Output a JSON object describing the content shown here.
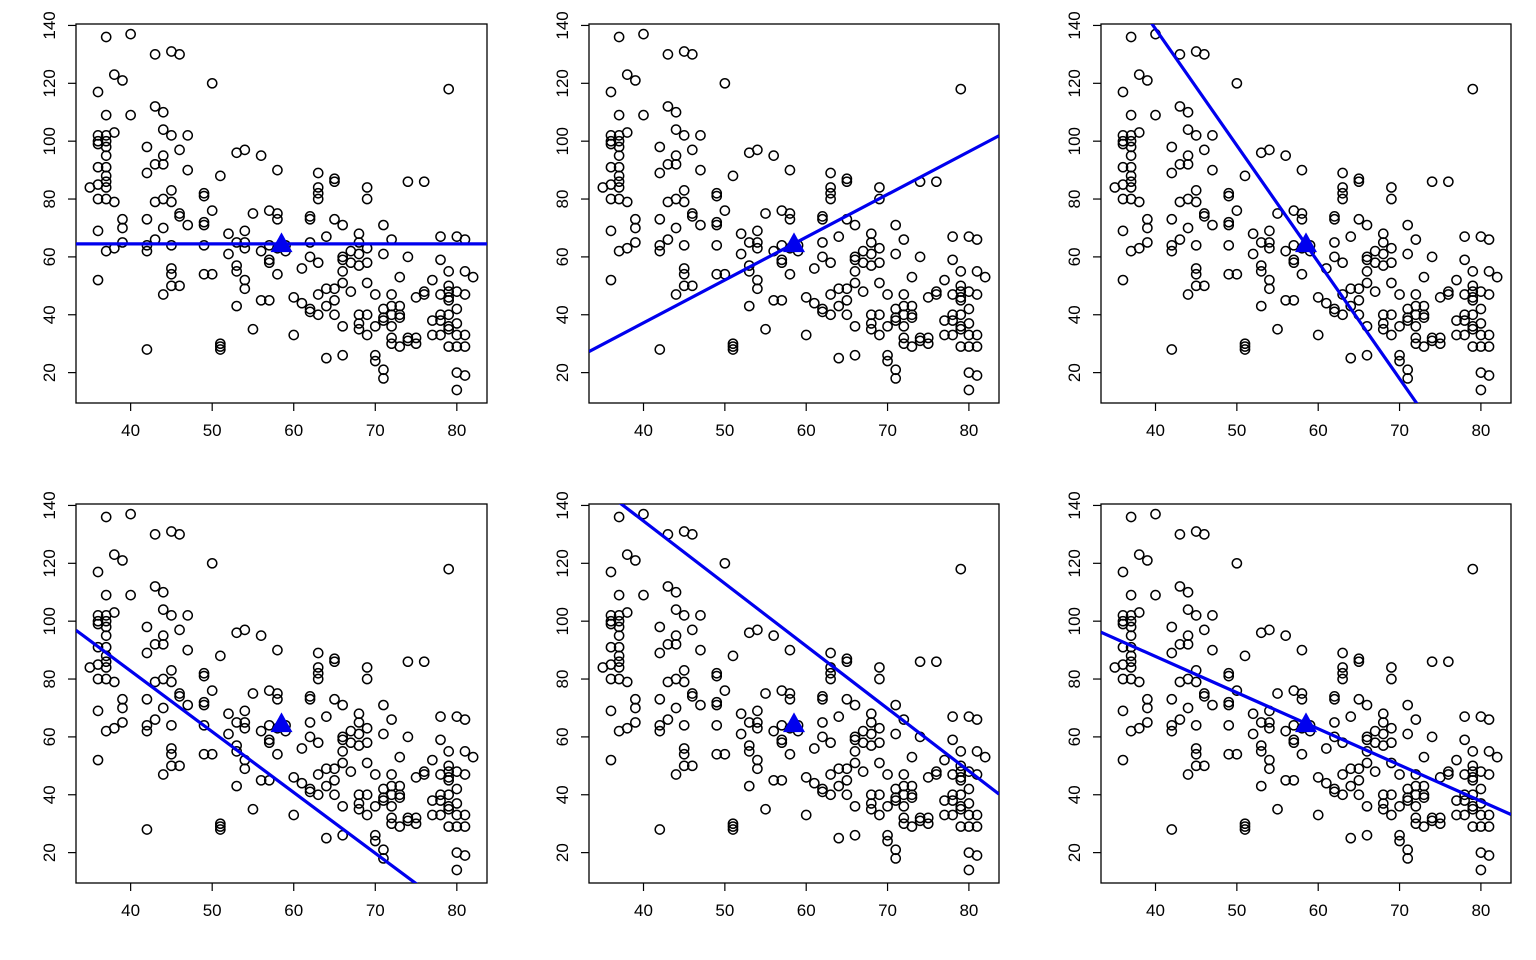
{
  "chart_data": {
    "type": "scatter",
    "layout_grid": "2x3",
    "colors": {
      "points": "#000000",
      "line": "#0000ee",
      "marker": "#0000ee"
    },
    "xlim": [
      33.3,
      83.7
    ],
    "ylim": [
      9.5,
      140.5
    ],
    "x_ticks": [
      40,
      50,
      60,
      70,
      80
    ],
    "y_ticks": [
      20,
      40,
      60,
      80,
      100,
      120,
      140
    ],
    "x_tick_labels": [
      "40",
      "50",
      "60",
      "70",
      "80"
    ],
    "y_tick_labels": [
      "20",
      "40",
      "60",
      "80",
      "100",
      "120",
      "140"
    ],
    "mean_point": {
      "x": 58.5,
      "y": 64.5,
      "shape": "triangle"
    },
    "points": [
      [
        36,
        117
      ],
      [
        36,
        100
      ],
      [
        36,
        102
      ],
      [
        36,
        99
      ],
      [
        36,
        91
      ],
      [
        36,
        85
      ],
      [
        36,
        80
      ],
      [
        36,
        69
      ],
      [
        36,
        52
      ],
      [
        35,
        84
      ],
      [
        37,
        136
      ],
      [
        37,
        109
      ],
      [
        37,
        102
      ],
      [
        37,
        100
      ],
      [
        37,
        98
      ],
      [
        37,
        95
      ],
      [
        37,
        91
      ],
      [
        37,
        88
      ],
      [
        37,
        86
      ],
      [
        37,
        84
      ],
      [
        37,
        80
      ],
      [
        37,
        62
      ],
      [
        38,
        123
      ],
      [
        38,
        103
      ],
      [
        38,
        79
      ],
      [
        38,
        63
      ],
      [
        39,
        121
      ],
      [
        39,
        73
      ],
      [
        39,
        70
      ],
      [
        39,
        65
      ],
      [
        40,
        137
      ],
      [
        40,
        109
      ],
      [
        42,
        98
      ],
      [
        42,
        89
      ],
      [
        42,
        73
      ],
      [
        42,
        64
      ],
      [
        42,
        62
      ],
      [
        42,
        28
      ],
      [
        43,
        130
      ],
      [
        43,
        112
      ],
      [
        43,
        92
      ],
      [
        43,
        79
      ],
      [
        43,
        66
      ],
      [
        44,
        110
      ],
      [
        44,
        104
      ],
      [
        44,
        95
      ],
      [
        44,
        92
      ],
      [
        44,
        80
      ],
      [
        44,
        70
      ],
      [
        44,
        47
      ],
      [
        45,
        131
      ],
      [
        45,
        102
      ],
      [
        45,
        83
      ],
      [
        45,
        79
      ],
      [
        45,
        64
      ],
      [
        45,
        56
      ],
      [
        45,
        50
      ],
      [
        45,
        54
      ],
      [
        46,
        130
      ],
      [
        46,
        97
      ],
      [
        46,
        75
      ],
      [
        46,
        74
      ],
      [
        46,
        50
      ],
      [
        47,
        102
      ],
      [
        47,
        90
      ],
      [
        47,
        71
      ],
      [
        49,
        82
      ],
      [
        49,
        81
      ],
      [
        49,
        72
      ],
      [
        49,
        71
      ],
      [
        49,
        64
      ],
      [
        49,
        54
      ],
      [
        50,
        120
      ],
      [
        50,
        76
      ],
      [
        50,
        54
      ],
      [
        51,
        88
      ],
      [
        51,
        30
      ],
      [
        51,
        29
      ],
      [
        51,
        28
      ],
      [
        52,
        68
      ],
      [
        52,
        61
      ],
      [
        53,
        96
      ],
      [
        53,
        65
      ],
      [
        53,
        57
      ],
      [
        53,
        55
      ],
      [
        53,
        43
      ],
      [
        54,
        97
      ],
      [
        54,
        69
      ],
      [
        54,
        65
      ],
      [
        54,
        63
      ],
      [
        54,
        52
      ],
      [
        54,
        49
      ],
      [
        55,
        75
      ],
      [
        55,
        35
      ],
      [
        56,
        95
      ],
      [
        56,
        62
      ],
      [
        56,
        45
      ],
      [
        57,
        76
      ],
      [
        57,
        64
      ],
      [
        57,
        59
      ],
      [
        57,
        58
      ],
      [
        57,
        45
      ],
      [
        58,
        75
      ],
      [
        58,
        73
      ],
      [
        58,
        63
      ],
      [
        58,
        54
      ],
      [
        58,
        90
      ],
      [
        59,
        64
      ],
      [
        59,
        62
      ],
      [
        60,
        46
      ],
      [
        60,
        33
      ],
      [
        61,
        56
      ],
      [
        61,
        44
      ],
      [
        62,
        74
      ],
      [
        62,
        73
      ],
      [
        62,
        65
      ],
      [
        62,
        60
      ],
      [
        62,
        42
      ],
      [
        62,
        41
      ],
      [
        63,
        89
      ],
      [
        63,
        84
      ],
      [
        63,
        82
      ],
      [
        63,
        80
      ],
      [
        63,
        58
      ],
      [
        63,
        47
      ],
      [
        63,
        40
      ],
      [
        64,
        67
      ],
      [
        64,
        49
      ],
      [
        64,
        25
      ],
      [
        64,
        43
      ],
      [
        65,
        87
      ],
      [
        65,
        86
      ],
      [
        65,
        73
      ],
      [
        65,
        49
      ],
      [
        65,
        45
      ],
      [
        65,
        40
      ],
      [
        66,
        71
      ],
      [
        66,
        60
      ],
      [
        66,
        59
      ],
      [
        66,
        55
      ],
      [
        66,
        51
      ],
      [
        66,
        36
      ],
      [
        66,
        26
      ],
      [
        67,
        62
      ],
      [
        67,
        58
      ],
      [
        67,
        48
      ],
      [
        68,
        68
      ],
      [
        68,
        65
      ],
      [
        68,
        61
      ],
      [
        68,
        57
      ],
      [
        68,
        40
      ],
      [
        68,
        37
      ],
      [
        68,
        35
      ],
      [
        69,
        84
      ],
      [
        69,
        80
      ],
      [
        69,
        63
      ],
      [
        69,
        58
      ],
      [
        69,
        51
      ],
      [
        69,
        40
      ],
      [
        69,
        33
      ],
      [
        70,
        47
      ],
      [
        70,
        26
      ],
      [
        70,
        24
      ],
      [
        70,
        36
      ],
      [
        71,
        71
      ],
      [
        71,
        61
      ],
      [
        71,
        42
      ],
      [
        71,
        39
      ],
      [
        71,
        38
      ],
      [
        71,
        21
      ],
      [
        71,
        18
      ],
      [
        72,
        66
      ],
      [
        72,
        47
      ],
      [
        72,
        43
      ],
      [
        72,
        40
      ],
      [
        72,
        36
      ],
      [
        72,
        32
      ],
      [
        72,
        30
      ],
      [
        73,
        53
      ],
      [
        73,
        43
      ],
      [
        73,
        40
      ],
      [
        73,
        39
      ],
      [
        73,
        29
      ],
      [
        74,
        86
      ],
      [
        74,
        60
      ],
      [
        74,
        31
      ],
      [
        74,
        32
      ],
      [
        75,
        46
      ],
      [
        75,
        32
      ],
      [
        75,
        30
      ],
      [
        76,
        86
      ],
      [
        76,
        48
      ],
      [
        76,
        47
      ],
      [
        77,
        52
      ],
      [
        77,
        38
      ],
      [
        77,
        33
      ],
      [
        78,
        67
      ],
      [
        78,
        59
      ],
      [
        78,
        47
      ],
      [
        78,
        40
      ],
      [
        78,
        38
      ],
      [
        78,
        33
      ],
      [
        79,
        118
      ],
      [
        79,
        55
      ],
      [
        79,
        50
      ],
      [
        79,
        48
      ],
      [
        79,
        46
      ],
      [
        79,
        45
      ],
      [
        79,
        40
      ],
      [
        79,
        36
      ],
      [
        79,
        35
      ],
      [
        79,
        29
      ],
      [
        80,
        67
      ],
      [
        80,
        48
      ],
      [
        80,
        42
      ],
      [
        80,
        37
      ],
      [
        80,
        33
      ],
      [
        80,
        20
      ],
      [
        80,
        14
      ],
      [
        80,
        29
      ],
      [
        81,
        66
      ],
      [
        81,
        55
      ],
      [
        81,
        47
      ],
      [
        81,
        33
      ],
      [
        81,
        29
      ],
      [
        81,
        19
      ],
      [
        82,
        53
      ]
    ],
    "lines": [
      {
        "panel": 1,
        "intercept": 64.5,
        "slope": 0
      },
      {
        "panel": 2,
        "intercept": -22.0,
        "slope": 1.48
      },
      {
        "panel": 3,
        "intercept": 300.0,
        "slope": -4.03
      },
      {
        "panel": 4,
        "intercept": 166.8,
        "slope": -2.1
      },
      {
        "panel": 5,
        "intercept": 221.0,
        "slope": -2.16
      },
      {
        "panel": 6,
        "intercept": 137.8,
        "slope": -1.25
      }
    ]
  }
}
